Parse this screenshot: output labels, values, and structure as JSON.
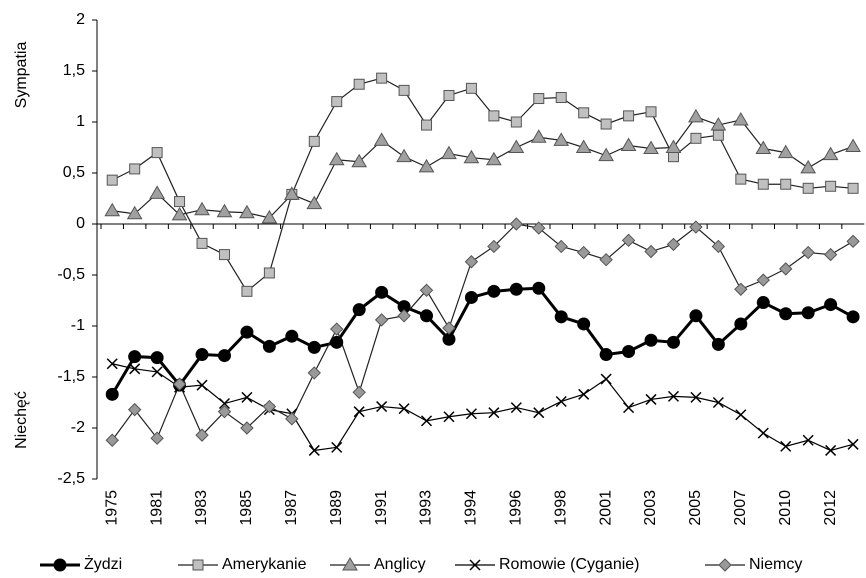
{
  "chart_data": {
    "type": "line",
    "axis_labels": [
      "Sympatia",
      "Niechęć"
    ],
    "categories": [
      "1975",
      null,
      "1981",
      null,
      "1983",
      null,
      "1985",
      null,
      "1987",
      null,
      "1989",
      null,
      "1991",
      null,
      "1993",
      null,
      "1994",
      null,
      "1996",
      null,
      "1998",
      null,
      "2001",
      null,
      "2003",
      null,
      "2005",
      null,
      "2007",
      null,
      "2010",
      null,
      "2012",
      null
    ],
    "series": [
      {
        "name": "Żydzi",
        "color": "#000000",
        "marker": "circle",
        "values": [
          -1.67,
          -1.3,
          -1.31,
          -1.58,
          -1.28,
          -1.29,
          -1.06,
          -1.2,
          -1.1,
          -1.21,
          -1.16,
          -0.84,
          -0.67,
          -0.81,
          -0.9,
          -1.13,
          -0.72,
          -0.66,
          -0.64,
          -0.63,
          -0.91,
          -0.98,
          -1.28,
          -1.25,
          -1.14,
          -1.16,
          -0.9,
          -1.18,
          -0.98,
          -0.77,
          -0.88,
          -0.87,
          -0.79,
          -0.91
        ]
      },
      {
        "name": "Amerykanie",
        "color": "#c0c0c0",
        "marker": "square",
        "values": [
          0.43,
          0.54,
          0.7,
          0.22,
          -0.19,
          -0.3,
          -0.66,
          -0.48,
          0.29,
          0.81,
          1.2,
          1.37,
          1.43,
          1.31,
          0.97,
          1.26,
          1.33,
          1.06,
          1.0,
          1.23,
          1.24,
          1.09,
          0.98,
          1.06,
          1.1,
          0.66,
          0.84,
          0.87,
          0.44,
          0.39,
          0.39,
          0.35,
          0.37,
          0.35
        ]
      },
      {
        "name": "Anglicy",
        "color": "#a0a0a0",
        "marker": "triangle",
        "values": [
          0.13,
          0.1,
          0.3,
          0.09,
          0.14,
          0.12,
          0.11,
          0.06,
          0.29,
          0.2,
          0.63,
          0.61,
          0.82,
          0.66,
          0.56,
          0.69,
          0.65,
          0.63,
          0.75,
          0.85,
          0.82,
          0.75,
          0.67,
          0.77,
          0.74,
          0.75,
          1.05,
          0.97,
          1.02,
          0.74,
          0.7,
          0.55,
          0.68,
          0.76
        ]
      },
      {
        "name": "Romowie (Cyganie)",
        "color": "#000000",
        "marker": "x",
        "values": [
          -1.37,
          -1.42,
          -1.45,
          -1.6,
          -1.58,
          -1.76,
          -1.7,
          -1.82,
          -1.86,
          -2.22,
          -2.19,
          -1.84,
          -1.79,
          -1.81,
          -1.93,
          -1.89,
          -1.86,
          -1.85,
          -1.8,
          -1.85,
          -1.74,
          -1.67,
          -1.52,
          -1.8,
          -1.72,
          -1.69,
          -1.7,
          -1.75,
          -1.87,
          -2.05,
          -2.18,
          -2.12,
          -2.22,
          -2.16
        ]
      },
      {
        "name": "Niemcy",
        "color": "#999999",
        "marker": "diamond",
        "values": [
          -2.12,
          -1.82,
          -2.1,
          -1.57,
          -2.07,
          -1.84,
          -2.0,
          -1.79,
          -1.91,
          -1.46,
          -1.03,
          -1.65,
          -0.94,
          -0.9,
          -0.65,
          -1.02,
          -0.37,
          -0.22,
          0.0,
          -0.04,
          -0.22,
          -0.28,
          -0.35,
          -0.16,
          -0.27,
          -0.2,
          -0.03,
          -0.22,
          -0.64,
          -0.55,
          -0.44,
          -0.28,
          -0.3,
          -0.17
        ]
      }
    ],
    "ylim": [
      -2.5,
      2
    ],
    "yticks": [
      {
        "value": -2.5,
        "label": "-2,5"
      },
      -2,
      {
        "value": -1.5,
        "label": "-1,5"
      },
      -1,
      {
        "value": -0.5,
        "label": "-0,5"
      },
      0,
      {
        "value": 0.5,
        "label": "0,5"
      },
      1,
      {
        "value": 1.5,
        "label": "1,5"
      },
      2
    ],
    "grid": false
  }
}
